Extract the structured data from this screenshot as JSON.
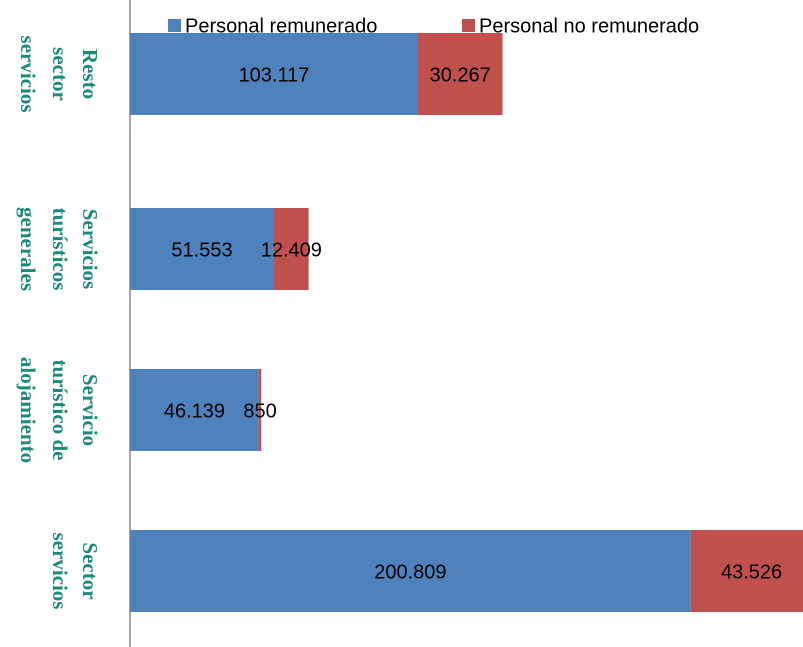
{
  "chart_data": {
    "type": "stacked-barh",
    "categories": [
      [
        "Resto",
        "sector",
        "servicios"
      ],
      [
        "Servicios",
        "turísticos",
        "generales"
      ],
      [
        "Servicio",
        "turístico de",
        "alojamiento"
      ],
      [
        "Sector",
        "servicios"
      ]
    ],
    "series": [
      {
        "name": "Personal remunerado",
        "color": "#4f81bd",
        "values": [
          103117,
          51553,
          46139,
          200809
        ],
        "value_labels": [
          "103.117",
          "51.553",
          "46.139",
          "200.809"
        ]
      },
      {
        "name": "Personal no remunerado",
        "color": "#c0504d",
        "values": [
          30267,
          12409,
          850,
          43526
        ],
        "value_labels": [
          "30.267",
          "12.409",
          "850",
          "43.526"
        ]
      }
    ],
    "xlim": [
      0,
      241000
    ],
    "legend": "top"
  }
}
